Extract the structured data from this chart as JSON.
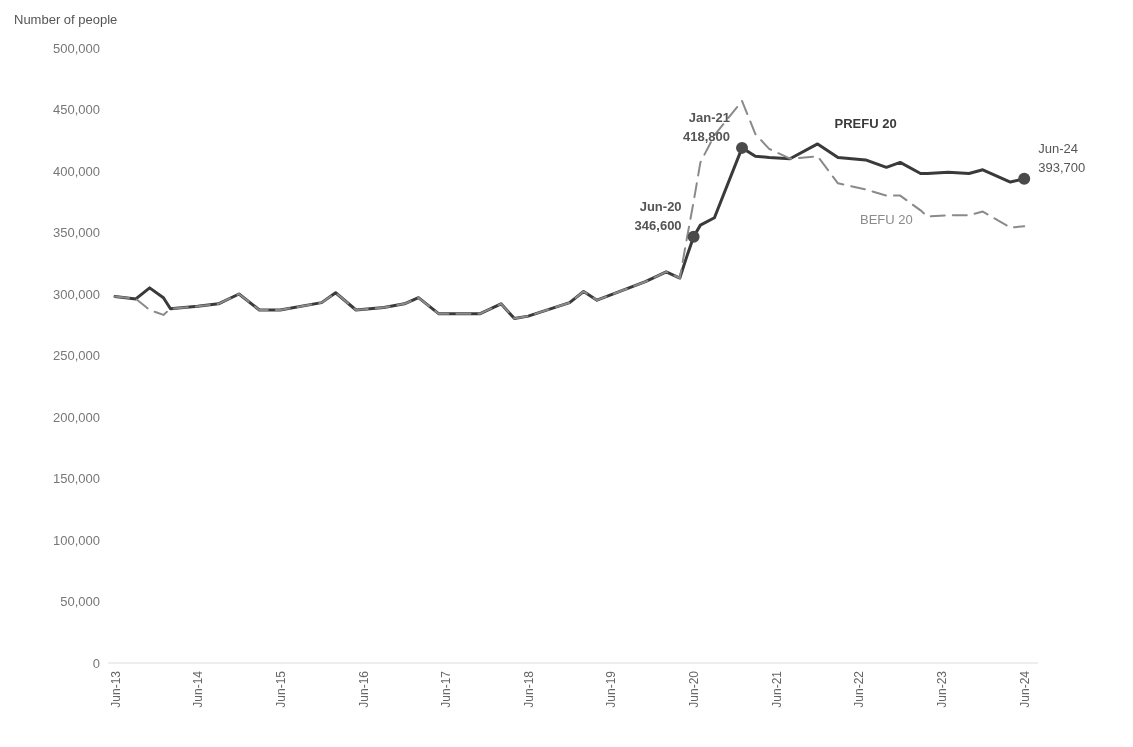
{
  "chart_data": {
    "type": "line",
    "ylabel": "Number of people",
    "x": [
      "2013-06",
      "2013-09",
      "2013-11",
      "2014-01",
      "2014-02",
      "2014-06",
      "2014-09",
      "2014-12",
      "2015-03",
      "2015-06",
      "2015-12",
      "2016-02",
      "2016-05",
      "2016-09",
      "2016-12",
      "2017-02",
      "2017-05",
      "2017-11",
      "2018-02",
      "2018-04",
      "2018-06",
      "2018-12",
      "2019-02",
      "2019-04",
      "2019-11",
      "2020-02",
      "2020-04",
      "2020-05",
      "2020-06",
      "2020-07",
      "2020-09",
      "2021-01",
      "2021-03",
      "2021-05",
      "2021-08",
      "2021-12",
      "2022-03",
      "2022-07",
      "2022-10",
      "2022-12",
      "2023-03",
      "2023-04",
      "2023-07",
      "2023-10",
      "2023-12",
      "2024-04",
      "2024-06"
    ],
    "series": [
      {
        "name": "PREFU 20",
        "color": "#3a3a3a",
        "line_style": "solid",
        "values": [
          298000,
          296000,
          305000,
          297000,
          288000,
          290000,
          292000,
          300000,
          287000,
          287000,
          293000,
          301000,
          287000,
          289000,
          292000,
          297000,
          284000,
          284000,
          292000,
          280000,
          282000,
          293000,
          302000,
          295000,
          310000,
          318000,
          313000,
          330000,
          346600,
          356000,
          362000,
          418800,
          412000,
          411000,
          410000,
          422000,
          411000,
          409000,
          403000,
          407000,
          398000,
          398000,
          399000,
          398000,
          401000,
          391000,
          393700
        ]
      },
      {
        "name": "BEFU 20",
        "color": "#8a8a8a",
        "line_style": "dashed",
        "values": [
          298000,
          296000,
          287000,
          283000,
          288000,
          290000,
          292000,
          300000,
          287000,
          287000,
          293000,
          301000,
          287000,
          289000,
          292000,
          297000,
          284000,
          284000,
          292000,
          280000,
          282000,
          293000,
          302000,
          295000,
          310000,
          318000,
          313000,
          344000,
          375000,
          407000,
          429000,
          457000,
          430000,
          418000,
          410000,
          412000,
          390000,
          385000,
          380000,
          380000,
          368000,
          363000,
          364000,
          364000,
          367000,
          354000,
          355000
        ]
      }
    ],
    "xlim": [
      "2013-05",
      "2024-08"
    ],
    "xticks": [
      {
        "value": "2013-06",
        "label": "Jun-13"
      },
      {
        "value": "2014-06",
        "label": "Jun-14"
      },
      {
        "value": "2015-06",
        "label": "Jun-15"
      },
      {
        "value": "2016-06",
        "label": "Jun-16"
      },
      {
        "value": "2017-06",
        "label": "Jun-17"
      },
      {
        "value": "2018-06",
        "label": "Jun-18"
      },
      {
        "value": "2019-06",
        "label": "Jun-19"
      },
      {
        "value": "2020-06",
        "label": "Jun-20"
      },
      {
        "value": "2021-06",
        "label": "Jun-21"
      },
      {
        "value": "2022-06",
        "label": "Jun-22"
      },
      {
        "value": "2023-06",
        "label": "Jun-23"
      },
      {
        "value": "2024-06",
        "label": "Jun-24"
      }
    ],
    "ylim": [
      0,
      500000
    ],
    "yticks": [
      {
        "value": 0,
        "label": "0"
      },
      {
        "value": 50000,
        "label": "50,000"
      },
      {
        "value": 100000,
        "label": "100,000"
      },
      {
        "value": 150000,
        "label": "150,000"
      },
      {
        "value": 200000,
        "label": "200,000"
      },
      {
        "value": 250000,
        "label": "250,000"
      },
      {
        "value": 300000,
        "label": "300,000"
      },
      {
        "value": 350000,
        "label": "350,000"
      },
      {
        "value": 400000,
        "label": "400,000"
      },
      {
        "value": 450000,
        "label": "450,000"
      },
      {
        "value": 500000,
        "label": "500,000"
      }
    ],
    "grid": false,
    "legend": false,
    "marker": "none",
    "annotations": [
      {
        "text": "Jun-20\n346,600",
        "x": "2020-06",
        "y": 346600
      },
      {
        "text": "Jan-21\n418,800",
        "x": "2021-01",
        "y": 418800
      },
      {
        "text": "Jun-24\n393,700",
        "x": "2024-06",
        "y": 393700
      }
    ]
  }
}
